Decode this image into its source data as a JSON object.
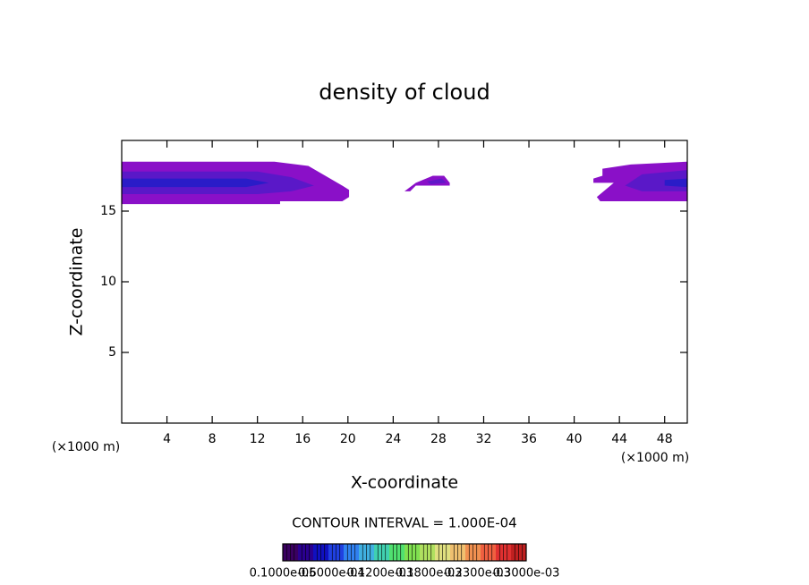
{
  "chart_data": {
    "type": "contour",
    "title": "density of cloud",
    "x_label": "X-coordinate",
    "y_label": "Z-coordinate",
    "x_unit_left": "(×1000 m)",
    "x_unit_right": "(×1000 m)",
    "xlim": [
      0,
      50
    ],
    "ylim": [
      0,
      20
    ],
    "xticks": [
      4,
      8,
      12,
      16,
      20,
      24,
      28,
      32,
      36,
      40,
      44,
      48
    ],
    "yticks": [
      5,
      10,
      15
    ],
    "regions": [
      {
        "color": "#8a10c8",
        "x": [
          0,
          13.5,
          16.5,
          18,
          19.5,
          20.1,
          20.1,
          19.5,
          14,
          14,
          0
        ],
        "y": [
          18.5,
          18.5,
          18.2,
          17.5,
          16.8,
          16.5,
          16.0,
          15.7,
          15.7,
          15.5,
          15.5
        ]
      },
      {
        "color": "#5a18c8",
        "x": [
          0,
          12,
          15,
          17,
          15,
          12,
          0
        ],
        "y": [
          17.8,
          17.8,
          17.4,
          16.8,
          16.4,
          16.2,
          16.2
        ]
      },
      {
        "color": "#2a1cc8",
        "x": [
          0,
          11,
          13,
          11,
          0
        ],
        "y": [
          17.3,
          17.3,
          17.0,
          16.7,
          16.7
        ]
      },
      {
        "color": "#8a10c8",
        "x": [
          25,
          26,
          27.5,
          28.5,
          29,
          29,
          26,
          25.5
        ],
        "y": [
          16.4,
          17.0,
          17.5,
          17.5,
          17.0,
          16.8,
          16.8,
          16.4
        ]
      },
      {
        "color": "#6018c8",
        "x": [
          27,
          28.3,
          28.7,
          27.3
        ],
        "y": [
          17.1,
          17.3,
          17.0,
          16.9
        ]
      },
      {
        "color": "#8a10c8",
        "x": [
          42.5,
          45,
          50,
          50,
          42.3,
          42,
          43.5,
          41.7,
          41.7,
          42.5
        ],
        "y": [
          18.0,
          18.3,
          18.5,
          15.7,
          15.7,
          16.0,
          17.0,
          17.0,
          17.3,
          17.5
        ]
      },
      {
        "color": "#5a18c8",
        "x": [
          46,
          50,
          50,
          46,
          44.5
        ],
        "y": [
          17.6,
          17.9,
          16.4,
          16.4,
          16.8
        ]
      },
      {
        "color": "#2a1cc8",
        "x": [
          48,
          50,
          50,
          48
        ],
        "y": [
          17.2,
          17.3,
          16.7,
          16.8
        ]
      }
    ],
    "contour_interval": "CONTOUR INTERVAL = 1.000E-04",
    "colorbar": {
      "colors": [
        "#3a0060",
        "#2a0090",
        "#1010c0",
        "#2040e0",
        "#3080f0",
        "#40b0e0",
        "#40d0b0",
        "#50e070",
        "#80e050",
        "#b0e060",
        "#e0e080",
        "#f0c070",
        "#f09050",
        "#f06040",
        "#e03030",
        "#c02020"
      ],
      "labels": [
        "0.1000e-05",
        "0.6000e-04",
        "0.1200e-03",
        "0.1800e-03",
        "0.2300e-03",
        "0.3000e-03"
      ]
    }
  }
}
